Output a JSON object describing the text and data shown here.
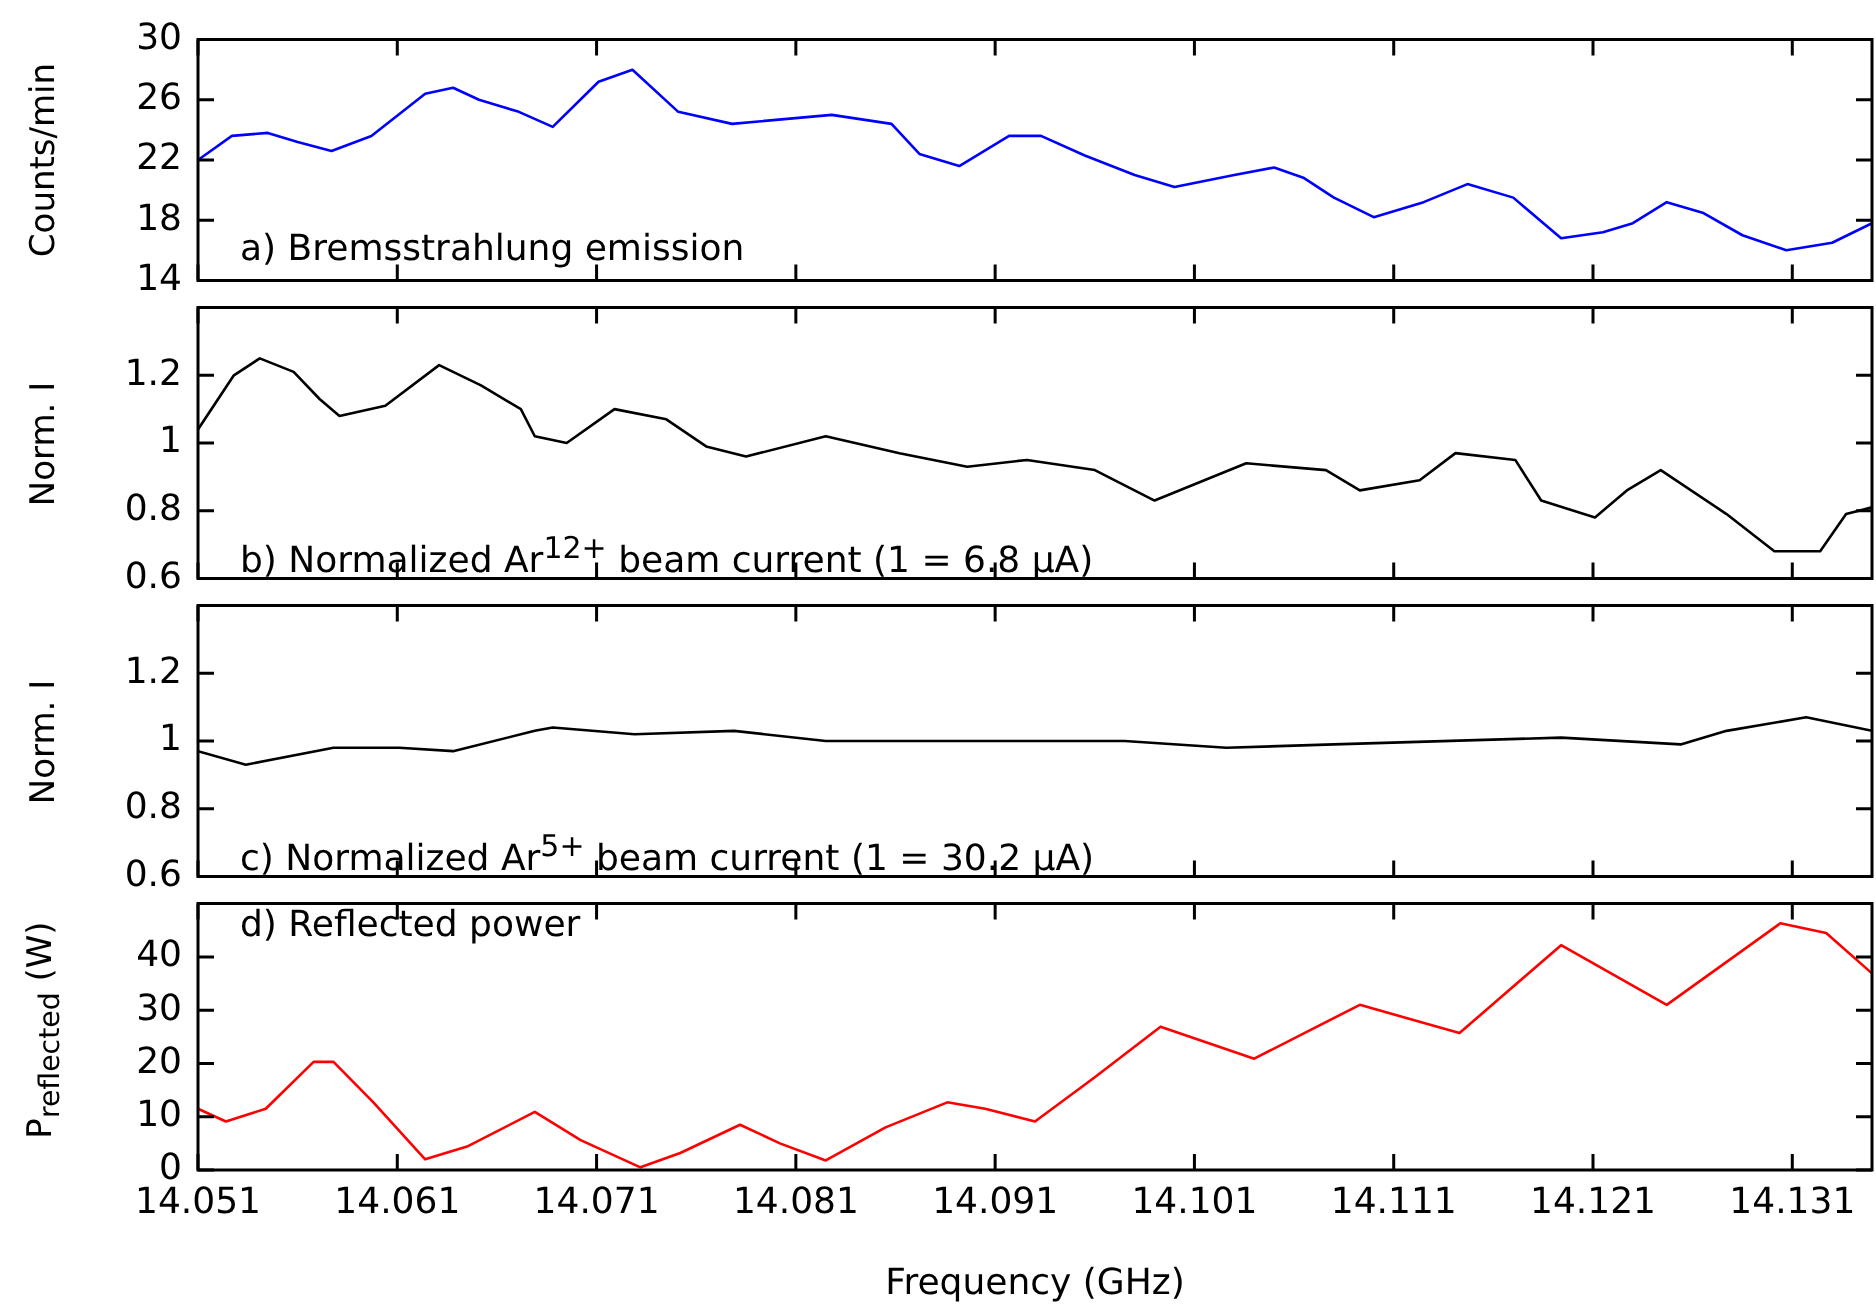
{
  "chart_data": [
    {
      "type": "line",
      "annotations": [
        "a) Bremsstrahlung emission"
      ],
      "ylabel": "Counts/min",
      "xlim": [
        14.051,
        14.135
      ],
      "xticks": [
        14.051,
        14.061,
        14.071,
        14.081,
        14.091,
        14.101,
        14.111,
        14.121,
        14.131
      ],
      "ylim": [
        14,
        30
      ],
      "yticks": [
        14,
        18,
        22,
        26,
        30
      ],
      "tick_labels": "y",
      "series": [
        {
          "color": "#0000ff",
          "x": [
            14.051,
            14.0527,
            14.0545,
            14.056,
            14.0577,
            14.0597,
            14.0624,
            14.0638,
            14.0651,
            14.0671,
            14.0688,
            14.0711,
            14.0728,
            14.0751,
            14.0778,
            14.0828,
            14.0858,
            14.0872,
            14.0892,
            14.0917,
            14.0933,
            14.0955,
            14.098,
            14.1,
            14.103,
            14.105,
            14.1065,
            14.108,
            14.11,
            14.1125,
            14.1147,
            14.117,
            14.1194,
            14.1215,
            14.123,
            14.1247,
            14.1265,
            14.1285,
            14.1307,
            14.133,
            14.135
          ],
          "values": [
            22,
            23.6,
            23.8,
            23.2,
            22.6,
            23.6,
            26.4,
            26.8,
            26,
            25.2,
            24.2,
            27.2,
            28,
            25.2,
            24.4,
            25,
            24.4,
            22.4,
            21.6,
            23.6,
            23.6,
            22.3,
            21,
            20.2,
            21,
            21.5,
            20.8,
            19.5,
            18.2,
            19.2,
            20.4,
            19.5,
            16.8,
            17.2,
            17.8,
            19.2,
            18.5,
            17,
            16,
            16.5,
            17.8
          ]
        }
      ]
    },
    {
      "type": "line",
      "annotations": [
        "b) Normalized Ar$^{12+}$ beam current (1 = 6.8 µA)"
      ],
      "ylabel": "Norm. I",
      "xlim": [
        14.051,
        14.135
      ],
      "xticks": [
        14.051,
        14.061,
        14.071,
        14.081,
        14.091,
        14.101,
        14.111,
        14.121,
        14.131
      ],
      "ylim": [
        0.6,
        1.4
      ],
      "yticks": [
        0.6,
        0.8,
        1,
        1.2
      ],
      "tick_labels": "y",
      "series": [
        {
          "color": "#000000",
          "x": [
            14.051,
            14.0528,
            14.0541,
            14.0558,
            14.0571,
            14.0581,
            14.0604,
            14.0631,
            14.0652,
            14.0672,
            14.0679,
            14.0695,
            14.0719,
            14.0745,
            14.0765,
            14.0785,
            14.0825,
            14.0862,
            14.0896,
            14.0926,
            14.096,
            14.099,
            14.1036,
            14.1076,
            14.1093,
            14.1123,
            14.1141,
            14.1171,
            14.1184,
            14.1211,
            14.1227,
            14.1244,
            14.1277,
            14.1301,
            14.1324,
            14.1337,
            14.135
          ],
          "values": [
            1.04,
            1.2,
            1.25,
            1.21,
            1.13,
            1.08,
            1.11,
            1.23,
            1.17,
            1.1,
            1.02,
            1,
            1.1,
            1.07,
            0.99,
            0.96,
            1.02,
            0.97,
            0.93,
            0.95,
            0.92,
            0.83,
            0.94,
            0.92,
            0.86,
            0.89,
            0.97,
            0.95,
            0.83,
            0.78,
            0.86,
            0.92,
            0.79,
            0.68,
            0.68,
            0.79,
            0.81
          ]
        }
      ]
    },
    {
      "type": "line",
      "annotations": [
        "c) Normalized Ar$^{5+}$ beam current (1 = 30.2 µA)"
      ],
      "ylabel": "Norm. I",
      "xlim": [
        14.051,
        14.135
      ],
      "xticks": [
        14.051,
        14.061,
        14.071,
        14.081,
        14.091,
        14.101,
        14.111,
        14.121,
        14.131
      ],
      "ylim": [
        0.6,
        1.4
      ],
      "yticks": [
        0.6,
        0.8,
        1,
        1.2
      ],
      "tick_labels": "y",
      "series": [
        {
          "color": "#000000",
          "x": [
            14.051,
            14.0534,
            14.0578,
            14.0611,
            14.0638,
            14.0679,
            14.0688,
            14.0729,
            14.0779,
            14.0825,
            14.0913,
            14.0975,
            14.1026,
            14.108,
            14.1194,
            14.1254,
            14.1277,
            14.1317,
            14.135
          ],
          "values": [
            0.97,
            0.93,
            0.98,
            0.98,
            0.97,
            1.03,
            1.04,
            1.02,
            1.03,
            1,
            1,
            1,
            0.98,
            0.99,
            1.01,
            0.99,
            1.03,
            1.07,
            1.03
          ]
        }
      ]
    },
    {
      "type": "line",
      "annotations": [
        "d) Reflected power"
      ],
      "ylabel": "P$_{reflected}$ (W)",
      "xlabel": "Frequency (GHz)",
      "xlim": [
        14.051,
        14.135
      ],
      "xticks": [
        14.051,
        14.061,
        14.071,
        14.081,
        14.091,
        14.101,
        14.111,
        14.121,
        14.131
      ],
      "ylim": [
        0,
        50
      ],
      "yticks": [
        0,
        10,
        20,
        30,
        40
      ],
      "series": [
        {
          "color": "#ff0000",
          "x": [
            14.051,
            14.0524,
            14.0544,
            14.0568,
            14.0578,
            14.0598,
            14.0624,
            14.0645,
            14.0679,
            14.0702,
            14.0732,
            14.0752,
            14.0782,
            14.0802,
            14.0825,
            14.0855,
            14.0886,
            14.0905,
            14.093,
            14.096,
            14.0993,
            14.104,
            14.1093,
            14.1143,
            14.1194,
            14.1247,
            14.1304,
            14.1327,
            14.135
          ],
          "values": [
            11.5,
            9.1,
            11.5,
            20.3,
            20.3,
            12.7,
            2,
            4.4,
            10.9,
            5.6,
            0.5,
            3.2,
            8.5,
            5,
            1.8,
            8,
            12.7,
            11.5,
            9.1,
            17.4,
            26.9,
            20.9,
            31,
            25.7,
            42.2,
            31,
            46.3,
            44.5,
            36.9
          ]
        }
      ]
    }
  ]
}
